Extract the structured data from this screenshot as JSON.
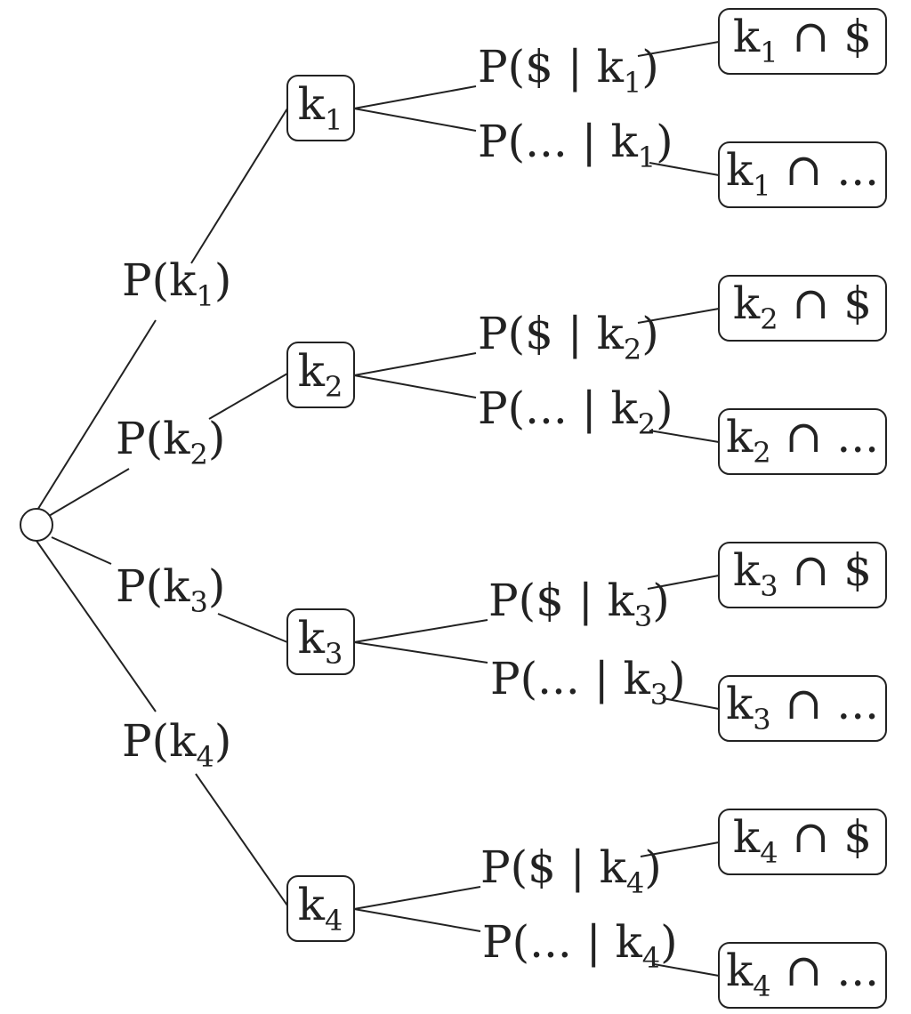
{
  "branches": [
    {
      "id": "k1",
      "node": {
        "base": "k",
        "sub": "1"
      },
      "prob": {
        "pre": "P(k",
        "sub": "1",
        "post": ")"
      },
      "outcomes": [
        {
          "prob": {
            "pre": "P($ | k",
            "sub": "1",
            "post": ")"
          },
          "leaf": {
            "pre": "k",
            "sub": "1",
            "post": " ∩ $"
          }
        },
        {
          "prob": {
            "pre": "P(... | k",
            "sub": "1",
            "post": ")"
          },
          "leaf": {
            "pre": "k",
            "sub": "1",
            "post": " ∩ ..."
          }
        }
      ]
    },
    {
      "id": "k2",
      "node": {
        "base": "k",
        "sub": "2"
      },
      "prob": {
        "pre": "P(k",
        "sub": "2",
        "post": ")"
      },
      "outcomes": [
        {
          "prob": {
            "pre": "P($ | k",
            "sub": "2",
            "post": ")"
          },
          "leaf": {
            "pre": "k",
            "sub": "2",
            "post": " ∩ $"
          }
        },
        {
          "prob": {
            "pre": "P(... | k",
            "sub": "2",
            "post": ")"
          },
          "leaf": {
            "pre": "k",
            "sub": "2",
            "post": " ∩ ..."
          }
        }
      ]
    },
    {
      "id": "k3",
      "node": {
        "base": "k",
        "sub": "3"
      },
      "prob": {
        "pre": "P(k",
        "sub": "3",
        "post": ")"
      },
      "outcomes": [
        {
          "prob": {
            "pre": "P($ | k",
            "sub": "3",
            "post": ")"
          },
          "leaf": {
            "pre": "k",
            "sub": "3",
            "post": " ∩ $"
          }
        },
        {
          "prob": {
            "pre": "P(... | k",
            "sub": "3",
            "post": ")"
          },
          "leaf": {
            "pre": "k",
            "sub": "3",
            "post": " ∩ ..."
          }
        }
      ]
    },
    {
      "id": "k4",
      "node": {
        "base": "k",
        "sub": "4"
      },
      "prob": {
        "pre": "P(k",
        "sub": "4",
        "post": ")"
      },
      "outcomes": [
        {
          "prob": {
            "pre": "P($ | k",
            "sub": "4",
            "post": ")"
          },
          "leaf": {
            "pre": "k",
            "sub": "4",
            "post": " ∩ $"
          }
        },
        {
          "prob": {
            "pre": "P(... | k",
            "sub": "4",
            "post": ")"
          },
          "leaf": {
            "pre": "k",
            "sub": "4",
            "post": " ∩ ..."
          }
        }
      ]
    }
  ]
}
